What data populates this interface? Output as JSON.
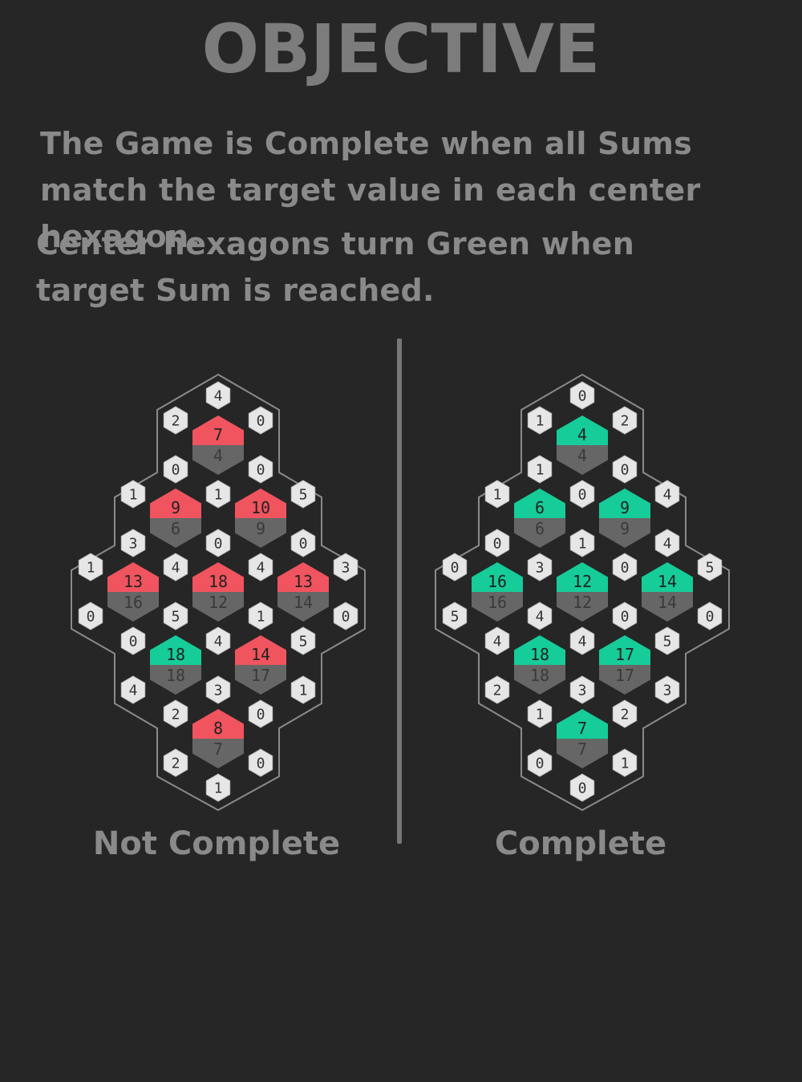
{
  "title": "OBJECTIVE",
  "paragraph1": "The Game is Complete when all Sums match the target value in each center hexagon.",
  "paragraph2": "Center hexagons turn Green when target Sum is reached.",
  "colors": {
    "background": "#262626",
    "reached": "#16cc98",
    "not_reached": "#f0545f",
    "target_bg": "#666666",
    "number_hex": "#e6e6e6"
  },
  "boards": [
    {
      "caption": "Not Complete",
      "centers": [
        {
          "sum": 7,
          "target": 4
        },
        {
          "sum": 9,
          "target": 6
        },
        {
          "sum": 10,
          "target": 9
        },
        {
          "sum": 13,
          "target": 16
        },
        {
          "sum": 18,
          "target": 12
        },
        {
          "sum": 13,
          "target": 14
        },
        {
          "sum": 18,
          "target": 18
        },
        {
          "sum": 14,
          "target": 17
        },
        {
          "sum": 8,
          "target": 7
        }
      ],
      "numbers": [
        4,
        2,
        0,
        0,
        0,
        1,
        1,
        5,
        3,
        0,
        0,
        1,
        4,
        4,
        3,
        0,
        5,
        1,
        0,
        0,
        4,
        5,
        4,
        3,
        1,
        2,
        0,
        2,
        0,
        1
      ]
    },
    {
      "caption": "Complete",
      "centers": [
        {
          "sum": 4,
          "target": 4
        },
        {
          "sum": 6,
          "target": 6
        },
        {
          "sum": 9,
          "target": 9
        },
        {
          "sum": 16,
          "target": 16
        },
        {
          "sum": 12,
          "target": 12
        },
        {
          "sum": 14,
          "target": 14
        },
        {
          "sum": 18,
          "target": 18
        },
        {
          "sum": 17,
          "target": 17
        },
        {
          "sum": 7,
          "target": 7
        }
      ],
      "numbers": [
        0,
        1,
        2,
        1,
        0,
        1,
        0,
        4,
        0,
        1,
        4,
        0,
        3,
        0,
        5,
        5,
        4,
        0,
        0,
        4,
        4,
        5,
        2,
        3,
        3,
        1,
        2,
        0,
        1,
        0
      ]
    }
  ]
}
